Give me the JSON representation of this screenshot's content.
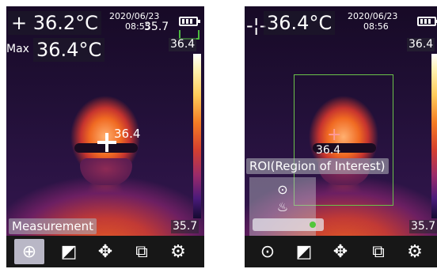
{
  "left_screen": {
    "current_temp": "+ 36.2°C",
    "datetime_line1": "2020/06/23",
    "datetime_line2": "08:55",
    "overlay_value": "35.7",
    "max_label": "Max",
    "max_temp": "36.4°C",
    "scale_top": "36.4",
    "scale_bottom": "35.7",
    "spot_value": "36.4",
    "mode_label": "Measurement",
    "toolbar": [
      {
        "icon": "target-icon",
        "glyph": "⊕"
      },
      {
        "icon": "palette-icon",
        "glyph": "🖌"
      },
      {
        "icon": "move-icon",
        "glyph": "✥"
      },
      {
        "icon": "layers-icon",
        "glyph": "⧉"
      },
      {
        "icon": "gear-icon",
        "glyph": "⚙"
      }
    ]
  },
  "right_screen": {
    "current_temp": "36.4°C",
    "datetime_line1": "2020/06/23",
    "datetime_line2": "08:56",
    "scale_top": "36.4",
    "scale_bottom": "35.7",
    "spot_value": "36.4",
    "roi_label": "ROI(Region of Interest)",
    "menu": [
      {
        "icon": "target-icon",
        "glyph": "⊙"
      },
      {
        "icon": "flame-icon",
        "glyph": "🔥"
      }
    ],
    "toolbar": [
      {
        "icon": "target-icon",
        "glyph": "⊙"
      },
      {
        "icon": "palette-icon",
        "glyph": "🖌"
      },
      {
        "icon": "move-icon",
        "glyph": "✥"
      },
      {
        "icon": "layers-icon",
        "glyph": "⧉"
      },
      {
        "icon": "gear-icon",
        "glyph": "⚙"
      }
    ]
  },
  "colors": {
    "roi_green": "#6cc24a",
    "toolbar_bg": "#171717",
    "active_tool_bg": "#b9b7c6"
  }
}
